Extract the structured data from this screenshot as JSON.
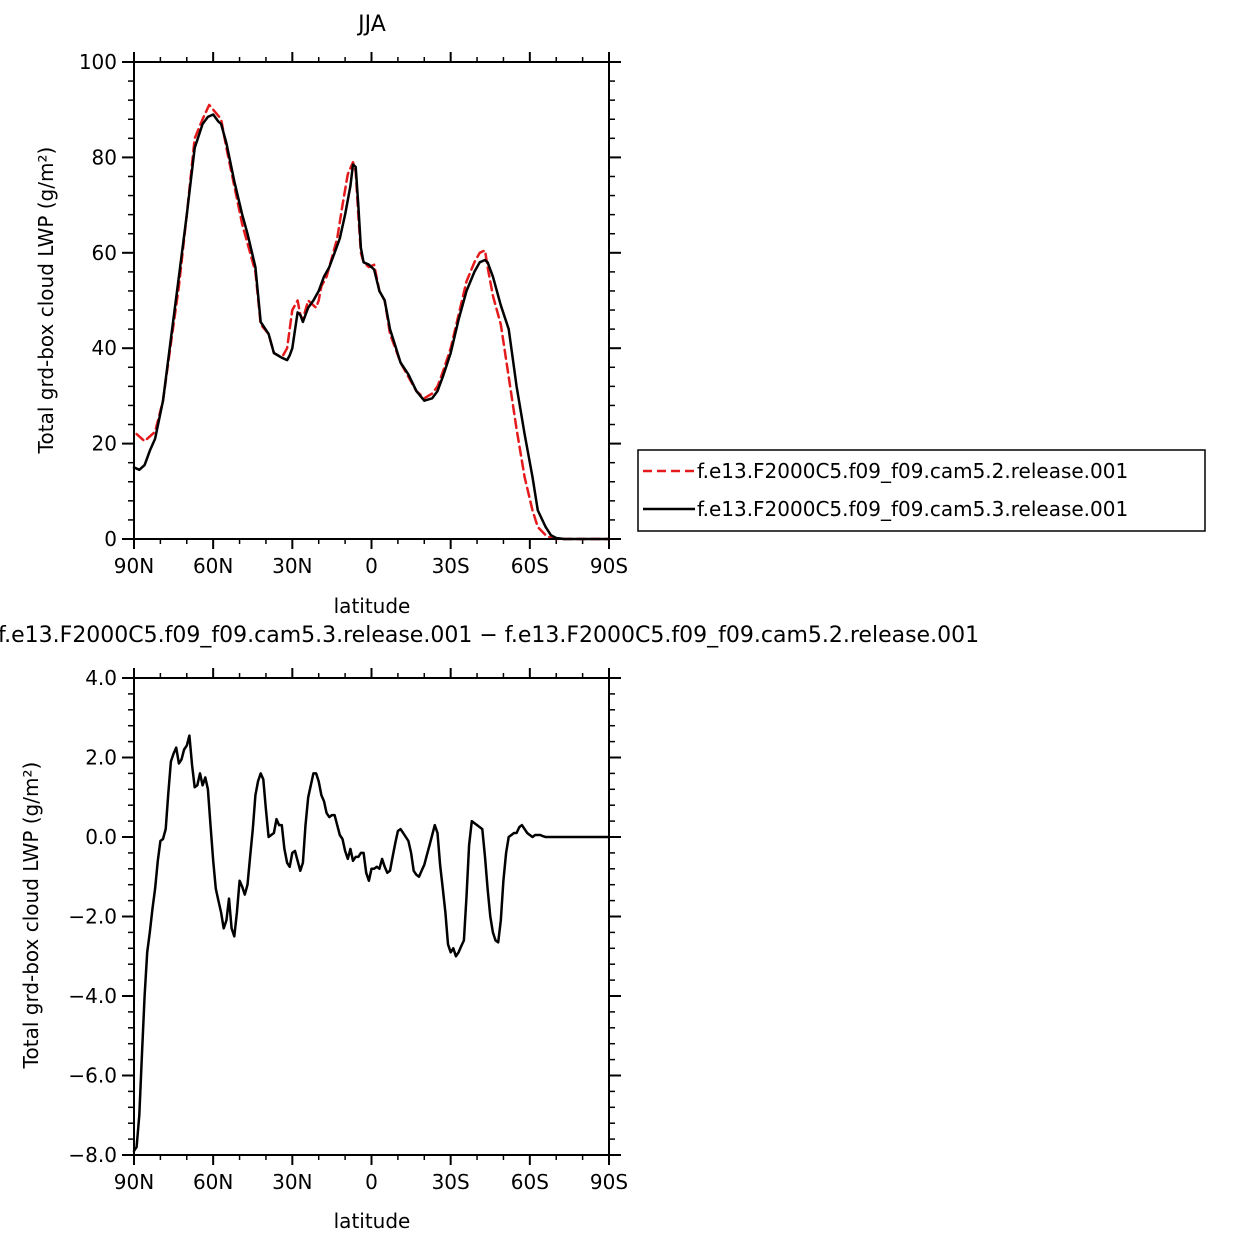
{
  "chart_data": [
    {
      "type": "line",
      "title": "JJA",
      "xlabel": "latitude",
      "ylabel": "Total grd-box cloud LWP (g/m²)",
      "xlim": [
        90,
        -90
      ],
      "ylim": [
        0,
        100
      ],
      "x_ticks": [
        90,
        60,
        30,
        0,
        -30,
        -60,
        -90
      ],
      "x_tick_labels": [
        "90N",
        "60N",
        "30N",
        "0",
        "30S",
        "60S",
        "90S"
      ],
      "y_ticks": [
        0,
        20,
        40,
        60,
        80,
        100
      ],
      "y_tick_labels": [
        "0",
        "20",
        "40",
        "60",
        "80",
        "100"
      ],
      "legend_position": "right",
      "series": [
        {
          "name": "f.e13.F2000C5.f09_f09.cam5.2.release.001",
          "color": "#e41a1c",
          "dash": "dashed",
          "x": [
            89,
            86,
            82,
            79,
            76,
            73,
            70,
            67,
            64,
            61.5,
            60,
            57,
            55,
            52,
            49,
            47,
            44,
            42,
            39,
            37,
            34,
            32,
            30,
            28,
            27,
            26,
            25,
            24,
            22,
            21,
            20,
            19,
            17,
            15,
            13,
            11,
            9,
            7,
            6,
            5,
            4,
            3,
            1,
            -1,
            -3,
            -5,
            -7,
            -9,
            -11,
            -14,
            -17,
            -20,
            -23,
            -25,
            -27,
            -30,
            -33,
            -36,
            -39,
            -41,
            -43,
            -44,
            -46,
            -49,
            -52,
            -55,
            -58,
            -61,
            -63,
            -66,
            -68,
            -70,
            -73,
            -76,
            -80,
            -90
          ],
          "y": [
            22,
            20.5,
            22.5,
            29,
            41,
            53,
            68,
            84,
            88,
            91,
            90,
            88,
            82,
            74,
            66,
            62,
            56,
            45,
            43,
            39,
            38,
            40,
            48,
            50,
            47,
            46,
            48,
            50,
            49,
            48.5,
            50,
            53,
            55,
            59,
            63,
            70,
            76.5,
            79,
            77,
            68,
            60,
            58,
            57,
            57.5,
            52,
            50,
            43,
            40,
            37,
            34,
            31,
            29.5,
            30.5,
            32,
            35,
            40,
            47,
            54,
            58,
            60,
            60.5,
            57,
            51,
            45,
            34,
            23,
            13,
            6,
            2.5,
            0.8,
            0.2,
            0,
            0,
            0,
            0,
            0
          ]
        },
        {
          "name": "f.e13.F2000C5.f09_f09.cam5.3.release.001",
          "color": "#000000",
          "dash": "solid",
          "x": [
            90,
            88,
            86,
            84,
            82,
            79,
            76,
            73,
            70,
            67,
            64,
            62,
            60,
            58,
            57,
            55,
            52,
            49,
            47,
            44,
            42,
            39,
            37,
            34,
            32,
            31,
            30,
            28,
            27,
            26,
            25,
            24,
            22,
            20,
            18,
            16,
            14,
            12,
            10,
            8,
            7,
            6,
            5,
            4,
            3,
            1,
            -1,
            -3,
            -5,
            -7,
            -9,
            -11,
            -14,
            -17,
            -20,
            -23,
            -25,
            -27,
            -30,
            -33,
            -36,
            -39,
            -41,
            -43,
            -44,
            -46,
            -49,
            -52,
            -55,
            -58,
            -61,
            -63,
            -66,
            -68,
            -70,
            -73,
            -76,
            -80,
            -90
          ],
          "y": [
            15,
            14.5,
            15.5,
            18.5,
            21,
            29,
            42,
            55,
            68,
            82,
            87,
            88.5,
            89,
            87.5,
            87,
            83,
            75,
            68,
            64,
            57,
            45.5,
            43,
            39,
            38,
            37.5,
            38.5,
            40,
            47.5,
            47,
            45.5,
            47,
            48.5,
            50,
            52,
            55,
            57,
            60,
            63,
            68,
            74,
            78.5,
            78,
            70,
            61,
            58,
            57.5,
            56.5,
            52,
            50,
            44,
            40.5,
            37,
            34.5,
            31,
            29,
            29.5,
            31,
            34,
            39,
            46,
            52,
            56,
            58,
            58.5,
            58,
            55,
            49,
            44,
            32,
            22,
            13,
            6,
            2.5,
            0.8,
            0.2,
            0,
            0,
            0,
            0
          ]
        }
      ]
    },
    {
      "type": "line",
      "title": "f.e13.F2000C5.f09_f09.cam5.3.release.001 − f.e13.F2000C5.f09_f09.cam5.2.release.001",
      "xlabel": "latitude",
      "ylabel": "Total grd-box cloud LWP (g/m²)",
      "xlim": [
        90,
        -90
      ],
      "ylim": [
        -8,
        4
      ],
      "x_ticks": [
        90,
        60,
        30,
        0,
        -30,
        -60,
        -90
      ],
      "x_tick_labels": [
        "90N",
        "60N",
        "30N",
        "0",
        "30S",
        "60S",
        "90S"
      ],
      "y_ticks": [
        -8,
        -6,
        -4,
        -2,
        0,
        2,
        4
      ],
      "y_tick_labels": [
        "−8.0",
        "−6.0",
        "−4.0",
        "−2.0",
        "0.0",
        "2.0",
        "4.0"
      ],
      "series": [
        {
          "color": "#000000",
          "dash": "solid",
          "x": [
            90,
            89,
            88,
            87,
            86,
            85,
            84,
            83,
            82,
            81,
            80,
            79,
            78,
            77,
            76,
            75,
            74,
            73,
            72,
            71,
            70,
            69,
            68,
            67,
            66,
            65,
            64,
            63,
            62,
            61,
            60,
            59,
            58,
            57,
            56,
            55,
            54,
            53,
            52,
            51,
            50,
            49,
            48,
            47,
            46,
            45,
            44,
            43,
            42,
            41,
            40,
            39,
            38,
            37,
            36,
            35,
            34,
            33,
            32,
            31,
            30,
            29,
            28,
            27,
            26,
            25,
            24,
            23,
            22,
            21,
            20,
            19,
            18,
            17,
            16,
            15,
            14,
            13,
            12,
            11,
            10,
            9,
            8,
            7,
            6,
            5,
            4,
            3,
            2,
            1,
            0,
            -1,
            -2,
            -3,
            -4,
            -5,
            -6,
            -7,
            -8,
            -9,
            -10,
            -11,
            -12,
            -13,
            -14,
            -15,
            -16,
            -17,
            -18,
            -19,
            -20,
            -21,
            -22,
            -23,
            -24,
            -25,
            -26,
            -27,
            -28,
            -29,
            -30,
            -31,
            -32,
            -33,
            -34,
            -35,
            -36,
            -37,
            -38,
            -39,
            -40,
            -41,
            -42,
            -43,
            -44,
            -45,
            -46,
            -47,
            -48,
            -49,
            -50,
            -51,
            -52,
            -53,
            -54,
            -55,
            -56,
            -57,
            -58,
            -59,
            -60,
            -61,
            -62,
            -63,
            -64,
            -65,
            -66,
            -67,
            -68,
            -69,
            -70,
            -72,
            -74,
            -76,
            -78,
            -80,
            -90
          ],
          "y": [
            -7.9,
            -7.8,
            -7.0,
            -5.5,
            -4.0,
            -2.9,
            -2.4,
            -1.8,
            -1.3,
            -0.6,
            -0.1,
            -0.05,
            0.2,
            1.1,
            1.9,
            2.1,
            2.25,
            1.85,
            1.95,
            2.2,
            2.3,
            2.55,
            1.8,
            1.25,
            1.3,
            1.6,
            1.3,
            1.5,
            1.2,
            0.3,
            -0.6,
            -1.3,
            -1.6,
            -1.9,
            -2.3,
            -2.1,
            -1.55,
            -2.3,
            -2.5,
            -1.9,
            -1.1,
            -1.25,
            -1.45,
            -1.2,
            -0.5,
            0.2,
            1.05,
            1.4,
            1.6,
            1.45,
            0.7,
            0.0,
            0.05,
            0.1,
            0.45,
            0.3,
            0.3,
            -0.3,
            -0.65,
            -0.75,
            -0.4,
            -0.35,
            -0.6,
            -0.85,
            -0.65,
            0.3,
            1.0,
            1.3,
            1.6,
            1.6,
            1.4,
            1.05,
            0.9,
            0.6,
            0.5,
            0.55,
            0.55,
            0.3,
            0.05,
            -0.05,
            -0.35,
            -0.55,
            -0.3,
            -0.6,
            -0.5,
            -0.5,
            -0.4,
            -0.4,
            -0.9,
            -1.1,
            -0.8,
            -0.8,
            -0.75,
            -0.8,
            -0.55,
            -0.75,
            -0.9,
            -0.85,
            -0.5,
            -0.15,
            0.15,
            0.2,
            0.1,
            0.0,
            -0.1,
            -0.4,
            -0.85,
            -0.95,
            -1.0,
            -0.85,
            -0.7,
            -0.45,
            -0.2,
            0.05,
            0.3,
            0.1,
            -0.7,
            -1.3,
            -1.9,
            -2.7,
            -2.9,
            -2.8,
            -3.0,
            -2.9,
            -2.75,
            -2.6,
            -1.5,
            -0.2,
            0.4,
            0.35,
            0.3,
            0.25,
            0.2,
            -0.5,
            -1.3,
            -2.0,
            -2.4,
            -2.6,
            -2.65,
            -2.1,
            -1.1,
            -0.4,
            0.0,
            0.05,
            0.1,
            0.1,
            0.25,
            0.3,
            0.2,
            0.1,
            0.05,
            0.0,
            0.05,
            0.05,
            0.05,
            0.02,
            0.0,
            0.0,
            0.0,
            0.0,
            0.0,
            0.0,
            0.0,
            0.0,
            0.0,
            0.0,
            0.0
          ]
        }
      ]
    }
  ]
}
